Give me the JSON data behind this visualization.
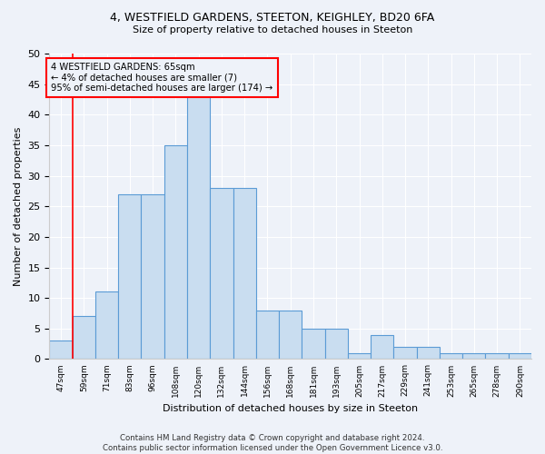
{
  "title1": "4, WESTFIELD GARDENS, STEETON, KEIGHLEY, BD20 6FA",
  "title2": "Size of property relative to detached houses in Steeton",
  "xlabel": "Distribution of detached houses by size in Steeton",
  "ylabel": "Number of detached properties",
  "bar_labels": [
    "47sqm",
    "59sqm",
    "71sqm",
    "83sqm",
    "96sqm",
    "108sqm",
    "120sqm",
    "132sqm",
    "144sqm",
    "156sqm",
    "168sqm",
    "181sqm",
    "193sqm",
    "205sqm",
    "217sqm",
    "229sqm",
    "241sqm",
    "253sqm",
    "265sqm",
    "278sqm",
    "290sqm"
  ],
  "bar_heights": [
    3,
    7,
    11,
    27,
    27,
    35,
    43,
    28,
    28,
    8,
    8,
    5,
    5,
    1,
    4,
    2,
    2,
    1,
    1,
    1,
    1
  ],
  "bar_color": "#c9ddf0",
  "bar_edge_color": "#5b9bd5",
  "annotation_box_text": "4 WESTFIELD GARDENS: 65sqm\n← 4% of detached houses are smaller (7)\n95% of semi-detached houses are larger (174) →",
  "ylim": [
    0,
    50
  ],
  "yticks": [
    0,
    5,
    10,
    15,
    20,
    25,
    30,
    35,
    40,
    45,
    50
  ],
  "footer": "Contains HM Land Registry data © Crown copyright and database right 2024.\nContains public sector information licensed under the Open Government Licence v3.0.",
  "bg_color": "#eef2f9",
  "grid_color": "#ffffff"
}
